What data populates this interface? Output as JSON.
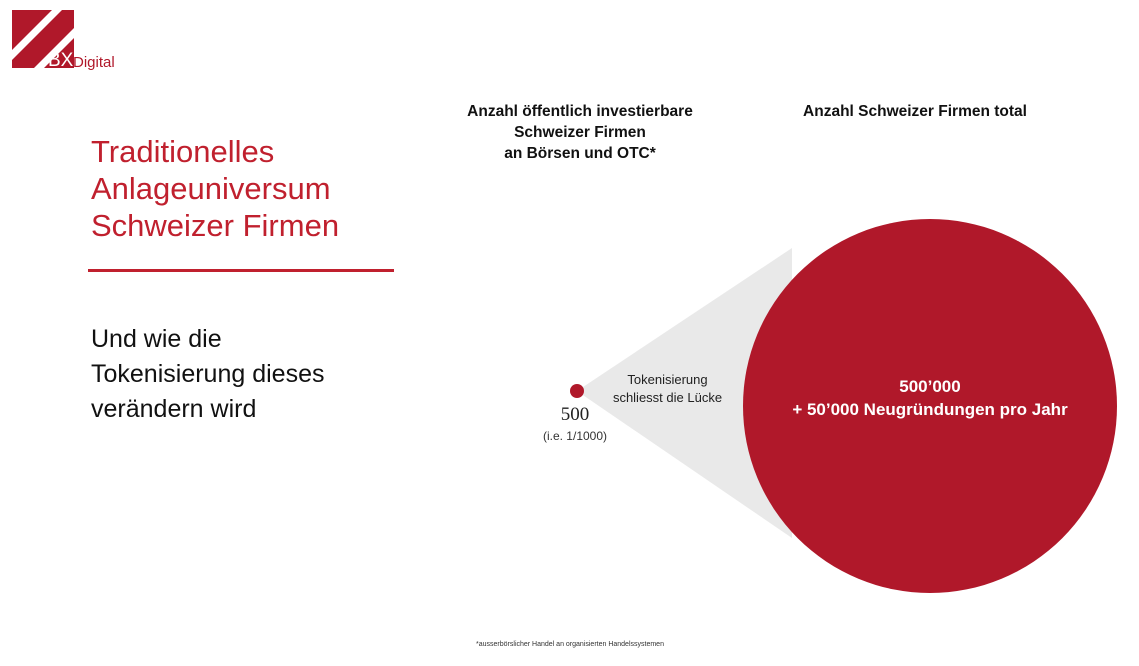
{
  "colors": {
    "accent": "#c0202e",
    "circle": "#b0182a",
    "funnel": "#e9e9e9"
  },
  "logo": {
    "bx": "BX",
    "digital": "Digital"
  },
  "title_lines": [
    "Traditionelles",
    "Anlageuniversum",
    "Schweizer Firmen"
  ],
  "subtitle_lines": [
    "Und wie die",
    "Tokenisierung dieses",
    "verändern wird"
  ],
  "heading_left_lines": [
    "Anzahl öffentlich investierbare",
    "Schweizer Firmen",
    "an Börsen und OTC*"
  ],
  "heading_right": "Anzahl Schweizer Firmen total",
  "small": {
    "value": "500",
    "ratio": "(i.e. 1/1000)"
  },
  "big": {
    "line1": "500’000",
    "line2": "+ 50’000 Neugründungen pro Jahr"
  },
  "gap_label_lines": [
    "Tokenisierung",
    "schliesst die Lücke"
  ],
  "footnote": "*ausserbörslicher Handel an organisierten Handelssystemen"
}
